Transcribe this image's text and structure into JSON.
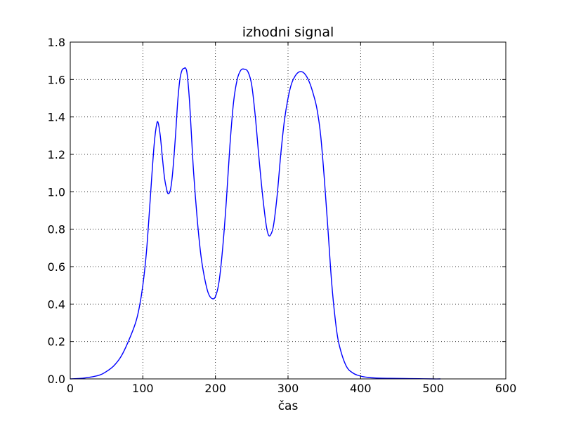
{
  "chart_data": {
    "type": "line",
    "title": "izhodni signal",
    "xlabel": "čas",
    "ylabel": "",
    "xlim": [
      0,
      600
    ],
    "ylim": [
      0,
      1.8
    ],
    "xticks": [
      "0",
      "100",
      "200",
      "300",
      "400",
      "500",
      "600"
    ],
    "yticks": [
      "0.0",
      "0.2",
      "0.4",
      "0.6",
      "0.8",
      "1.0",
      "1.2",
      "1.4",
      "1.6",
      "1.8"
    ],
    "grid": true,
    "series": [
      {
        "color": "#0000ff",
        "x": [
          0,
          20,
          40,
          50,
          60,
          70,
          80,
          90,
          95,
          100,
          105,
          110,
          113,
          116,
          119,
          121,
          124,
          127,
          130,
          133,
          135,
          138,
          141,
          145,
          148,
          151,
          154,
          157,
          159,
          161,
          164,
          167,
          170,
          175,
          180,
          185,
          190,
          195,
          200,
          205,
          210,
          215,
          220,
          225,
          230,
          235,
          240,
          245,
          250,
          255,
          260,
          265,
          270,
          273,
          276,
          280,
          285,
          290,
          295,
          300,
          305,
          310,
          315,
          320,
          325,
          330,
          335,
          340,
          345,
          350,
          355,
          360,
          365,
          370,
          380,
          390,
          400,
          410,
          420,
          440,
          460,
          480,
          500,
          510
        ],
        "y": [
          0.0,
          0.005,
          0.02,
          0.04,
          0.07,
          0.12,
          0.2,
          0.3,
          0.38,
          0.5,
          0.68,
          0.95,
          1.12,
          1.27,
          1.36,
          1.37,
          1.3,
          1.18,
          1.07,
          1.01,
          0.99,
          1.01,
          1.1,
          1.3,
          1.48,
          1.6,
          1.65,
          1.66,
          1.66,
          1.63,
          1.5,
          1.3,
          1.1,
          0.85,
          0.66,
          0.54,
          0.46,
          0.43,
          0.44,
          0.52,
          0.7,
          0.95,
          1.25,
          1.48,
          1.6,
          1.65,
          1.655,
          1.64,
          1.57,
          1.4,
          1.18,
          0.98,
          0.82,
          0.77,
          0.77,
          0.82,
          0.98,
          1.2,
          1.38,
          1.5,
          1.58,
          1.62,
          1.64,
          1.64,
          1.62,
          1.58,
          1.52,
          1.44,
          1.3,
          1.07,
          0.8,
          0.52,
          0.32,
          0.19,
          0.07,
          0.03,
          0.015,
          0.008,
          0.005,
          0.003,
          0.002,
          0.001,
          0.0,
          0.0
        ]
      }
    ]
  }
}
